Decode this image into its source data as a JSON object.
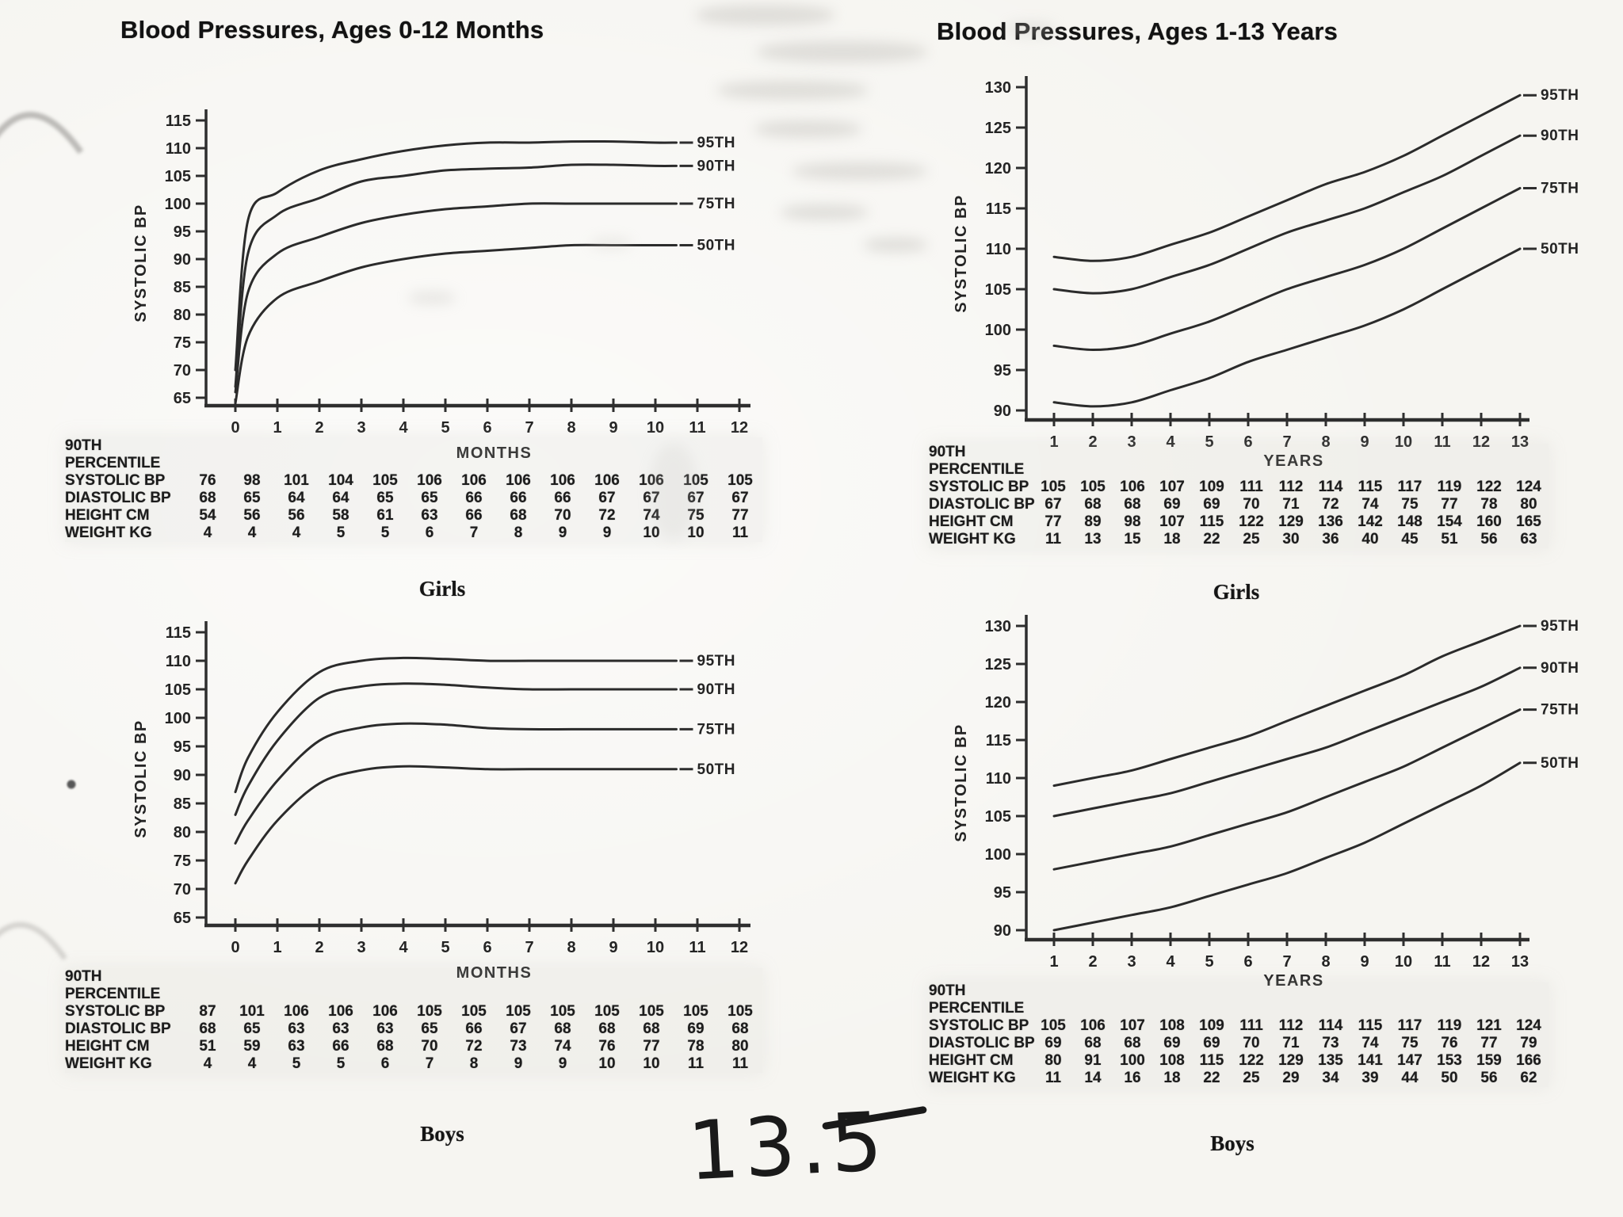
{
  "annotations": {
    "handwritten_note": "13.5"
  },
  "chart_data": [
    {
      "id": "girls-0-12-months",
      "type": "line",
      "title": "Blood Pressures, Ages 0-12 Months",
      "group_caption": "Girls",
      "xlabel": "MONTHS",
      "ylabel": "SYSTOLIC BP",
      "x_ticks": [
        0,
        1,
        2,
        3,
        4,
        5,
        6,
        7,
        8,
        9,
        10,
        11,
        12
      ],
      "y_ticks": [
        115,
        110,
        105,
        100,
        95,
        90,
        85,
        80,
        75,
        70,
        65
      ],
      "ylim": [
        65,
        115
      ],
      "legend_position": "right-of-curves",
      "grid": false,
      "series": [
        {
          "name": "95TH",
          "x": [
            0,
            0.3,
            1,
            2,
            3,
            4,
            5,
            6,
            7,
            8,
            9,
            10,
            10.5
          ],
          "values": [
            70,
            97,
            102,
            106,
            108,
            109.5,
            110.5,
            111,
            111,
            111.2,
            111.2,
            111,
            111
          ]
        },
        {
          "name": "90TH",
          "x": [
            0,
            0.3,
            1,
            2,
            3,
            4,
            5,
            6,
            7,
            8,
            9,
            10,
            10.5
          ],
          "values": [
            67,
            91,
            98,
            101,
            104,
            105,
            106,
            106.3,
            106.5,
            107,
            107,
            106.8,
            106.8
          ]
        },
        {
          "name": "75TH",
          "x": [
            0,
            0.3,
            1,
            2,
            3,
            4,
            5,
            6,
            7,
            8,
            9,
            10,
            10.5
          ],
          "values": [
            66,
            84,
            91,
            94,
            96.5,
            98,
            99,
            99.5,
            100,
            100,
            100,
            100,
            100
          ]
        },
        {
          "name": "50TH",
          "x": [
            0,
            0.3,
            1,
            2,
            3,
            4,
            5,
            6,
            7,
            8,
            9,
            10,
            10.5
          ],
          "values": [
            64,
            76,
            83,
            86,
            88.5,
            90,
            91,
            91.5,
            92,
            92.5,
            92.5,
            92.5,
            92.5
          ]
        }
      ],
      "table": {
        "header": [
          "90TH",
          "PERCENTILE"
        ],
        "rows": [
          {
            "label": "SYSTOLIC BP",
            "values": [
              76,
              98,
              101,
              104,
              105,
              106,
              106,
              106,
              106,
              106,
              106,
              105,
              105
            ]
          },
          {
            "label": "DIASTOLIC BP",
            "values": [
              68,
              65,
              64,
              64,
              65,
              65,
              66,
              66,
              66,
              67,
              67,
              67,
              67
            ]
          },
          {
            "label": "HEIGHT CM",
            "values": [
              54,
              56,
              56,
              58,
              61,
              63,
              66,
              68,
              70,
              72,
              74,
              75,
              77
            ]
          },
          {
            "label": "WEIGHT KG",
            "values": [
              4,
              4,
              4,
              5,
              5,
              6,
              7,
              8,
              9,
              9,
              10,
              10,
              11
            ]
          }
        ]
      }
    },
    {
      "id": "girls-1-13-years",
      "type": "line",
      "title": "Blood Pressures, Ages 1-13 Years",
      "group_caption": "Girls",
      "xlabel": "YEARS",
      "ylabel": "SYSTOLIC BP",
      "x_ticks": [
        1,
        2,
        3,
        4,
        5,
        6,
        7,
        8,
        9,
        10,
        11,
        12,
        13
      ],
      "y_ticks": [
        130,
        125,
        120,
        115,
        110,
        105,
        100,
        95,
        90
      ],
      "ylim": [
        90,
        130
      ],
      "legend_position": "right-of-curves",
      "grid": false,
      "series": [
        {
          "name": "95TH",
          "x": [
            1,
            2,
            3,
            4,
            5,
            6,
            7,
            8,
            9,
            10,
            11,
            12,
            13
          ],
          "values": [
            109,
            108.5,
            109,
            110.5,
            112,
            114,
            116,
            118,
            119.5,
            121.5,
            124,
            126.5,
            129
          ]
        },
        {
          "name": "90TH",
          "x": [
            1,
            2,
            3,
            4,
            5,
            6,
            7,
            8,
            9,
            10,
            11,
            12,
            13
          ],
          "values": [
            105,
            104.5,
            105,
            106.5,
            108,
            110,
            112,
            113.5,
            115,
            117,
            119,
            121.5,
            124
          ]
        },
        {
          "name": "75TH",
          "x": [
            1,
            2,
            3,
            4,
            5,
            6,
            7,
            8,
            9,
            10,
            11,
            12,
            13
          ],
          "values": [
            98,
            97.5,
            98,
            99.5,
            101,
            103,
            105,
            106.5,
            108,
            110,
            112.5,
            115,
            117.5
          ]
        },
        {
          "name": "50TH",
          "x": [
            1,
            2,
            3,
            4,
            5,
            6,
            7,
            8,
            9,
            10,
            11,
            12,
            13
          ],
          "values": [
            91,
            90.5,
            91,
            92.5,
            94,
            96,
            97.5,
            99,
            100.5,
            102.5,
            105,
            107.5,
            110
          ]
        }
      ],
      "table": {
        "header": [
          "90TH",
          "PERCENTILE"
        ],
        "rows": [
          {
            "label": "SYSTOLIC BP",
            "values": [
              105,
              105,
              106,
              107,
              109,
              111,
              112,
              114,
              115,
              117,
              119,
              122,
              124
            ]
          },
          {
            "label": "DIASTOLIC BP",
            "values": [
              67,
              68,
              68,
              69,
              69,
              70,
              71,
              72,
              74,
              75,
              77,
              78,
              80
            ]
          },
          {
            "label": "HEIGHT CM",
            "values": [
              77,
              89,
              98,
              107,
              115,
              122,
              129,
              136,
              142,
              148,
              154,
              160,
              165
            ]
          },
          {
            "label": "WEIGHT KG",
            "values": [
              11,
              13,
              15,
              18,
              22,
              25,
              30,
              36,
              40,
              45,
              51,
              56,
              63
            ]
          }
        ]
      }
    },
    {
      "id": "boys-0-12-months",
      "type": "line",
      "title": "",
      "group_caption": "Boys",
      "xlabel": "MONTHS",
      "ylabel": "SYSTOLIC BP",
      "x_ticks": [
        0,
        1,
        2,
        3,
        4,
        5,
        6,
        7,
        8,
        9,
        10,
        11,
        12
      ],
      "y_ticks": [
        115,
        110,
        105,
        100,
        95,
        90,
        85,
        80,
        75,
        70,
        65
      ],
      "ylim": [
        65,
        115
      ],
      "legend_position": "right-of-curves",
      "grid": false,
      "series": [
        {
          "name": "95TH",
          "x": [
            0,
            0.3,
            1,
            2,
            3,
            4,
            5,
            6,
            7,
            8,
            9,
            10,
            10.5
          ],
          "values": [
            87,
            93,
            101,
            108,
            110,
            110.5,
            110.3,
            110,
            110,
            110,
            110,
            110,
            110
          ]
        },
        {
          "name": "90TH",
          "x": [
            0,
            0.3,
            1,
            2,
            3,
            4,
            5,
            6,
            7,
            8,
            9,
            10,
            10.5
          ],
          "values": [
            83,
            88,
            96,
            103.5,
            105.5,
            106,
            105.8,
            105.3,
            105,
            105,
            105,
            105,
            105
          ]
        },
        {
          "name": "75TH",
          "x": [
            0,
            0.3,
            1,
            2,
            3,
            4,
            5,
            6,
            7,
            8,
            9,
            10,
            10.5
          ],
          "values": [
            78,
            82,
            89,
            96,
            98.3,
            99,
            98.8,
            98.2,
            98,
            98,
            98,
            98,
            98
          ]
        },
        {
          "name": "50TH",
          "x": [
            0,
            0.3,
            1,
            2,
            3,
            4,
            5,
            6,
            7,
            8,
            9,
            10,
            10.5
          ],
          "values": [
            71,
            75,
            82,
            88.5,
            90.8,
            91.5,
            91.3,
            91,
            91,
            91,
            91,
            91,
            91
          ]
        }
      ],
      "table": {
        "header": [
          "90TH",
          "PERCENTILE"
        ],
        "rows": [
          {
            "label": "SYSTOLIC BP",
            "values": [
              87,
              101,
              106,
              106,
              106,
              105,
              105,
              105,
              105,
              105,
              105,
              105,
              105
            ]
          },
          {
            "label": "DIASTOLIC BP",
            "values": [
              68,
              65,
              63,
              63,
              63,
              65,
              66,
              67,
              68,
              68,
              68,
              69,
              68
            ]
          },
          {
            "label": "HEIGHT CM",
            "values": [
              51,
              59,
              63,
              66,
              68,
              70,
              72,
              73,
              74,
              76,
              77,
              78,
              80
            ]
          },
          {
            "label": "WEIGHT KG",
            "values": [
              4,
              4,
              5,
              5,
              6,
              7,
              8,
              9,
              9,
              10,
              10,
              11,
              11
            ]
          }
        ]
      }
    },
    {
      "id": "boys-1-13-years",
      "type": "line",
      "title": "",
      "group_caption": "Boys",
      "xlabel": "YEARS",
      "ylabel": "SYSTOLIC BP",
      "x_ticks": [
        1,
        2,
        3,
        4,
        5,
        6,
        7,
        8,
        9,
        10,
        11,
        12,
        13
      ],
      "y_ticks": [
        130,
        125,
        120,
        115,
        110,
        105,
        100,
        95,
        90
      ],
      "ylim": [
        90,
        130
      ],
      "legend_position": "right-of-curves",
      "grid": false,
      "series": [
        {
          "name": "95TH",
          "x": [
            1,
            2,
            3,
            4,
            5,
            6,
            7,
            8,
            9,
            10,
            11,
            12,
            13
          ],
          "values": [
            109,
            110,
            111,
            112.5,
            114,
            115.5,
            117.5,
            119.5,
            121.5,
            123.5,
            126,
            128,
            130
          ]
        },
        {
          "name": "90TH",
          "x": [
            1,
            2,
            3,
            4,
            5,
            6,
            7,
            8,
            9,
            10,
            11,
            12,
            13
          ],
          "values": [
            105,
            106,
            107,
            108,
            109.5,
            111,
            112.5,
            114,
            116,
            118,
            120,
            122,
            124.5
          ]
        },
        {
          "name": "75TH",
          "x": [
            1,
            2,
            3,
            4,
            5,
            6,
            7,
            8,
            9,
            10,
            11,
            12,
            13
          ],
          "values": [
            98,
            99,
            100,
            101,
            102.5,
            104,
            105.5,
            107.5,
            109.5,
            111.5,
            114,
            116.5,
            119
          ]
        },
        {
          "name": "50TH",
          "x": [
            1,
            2,
            3,
            4,
            5,
            6,
            7,
            8,
            9,
            10,
            11,
            12,
            13
          ],
          "values": [
            90,
            91,
            92,
            93,
            94.5,
            96,
            97.5,
            99.5,
            101.5,
            104,
            106.5,
            109,
            112
          ]
        }
      ],
      "table": {
        "header": [
          "90TH",
          "PERCENTILE"
        ],
        "rows": [
          {
            "label": "SYSTOLIC BP",
            "values": [
              105,
              106,
              107,
              108,
              109,
              111,
              112,
              114,
              115,
              117,
              119,
              121,
              124
            ]
          },
          {
            "label": "DIASTOLIC BP",
            "values": [
              69,
              68,
              68,
              69,
              69,
              70,
              71,
              73,
              74,
              75,
              76,
              77,
              79
            ]
          },
          {
            "label": "HEIGHT CM",
            "values": [
              80,
              91,
              100,
              108,
              115,
              122,
              129,
              135,
              141,
              147,
              153,
              159,
              166
            ]
          },
          {
            "label": "WEIGHT KG",
            "values": [
              11,
              14,
              16,
              18,
              22,
              25,
              29,
              34,
              39,
              44,
              50,
              56,
              62
            ]
          }
        ]
      }
    }
  ]
}
